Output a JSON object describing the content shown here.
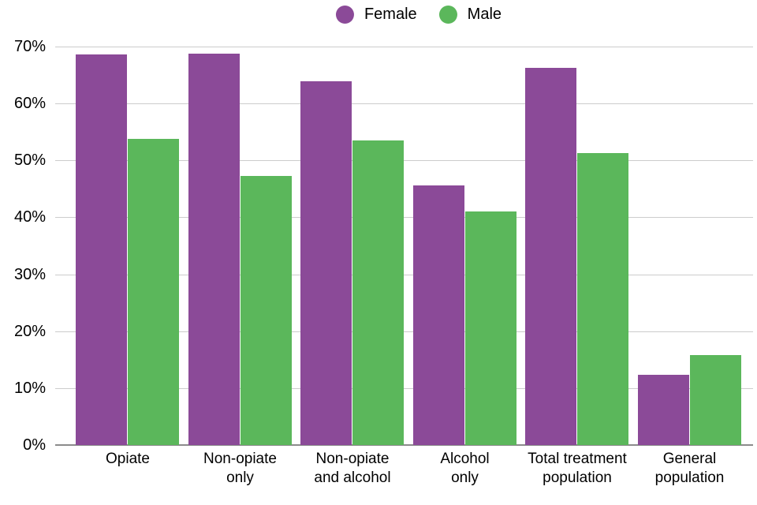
{
  "legend": {
    "items": [
      {
        "label": "Female",
        "color": "#8b4a98"
      },
      {
        "label": "Male",
        "color": "#5bb75b"
      }
    ]
  },
  "chart_data": {
    "type": "bar",
    "title": "",
    "xlabel": "",
    "ylabel": "",
    "categories": [
      "Opiate",
      "Non-opiate only",
      "Non-opiate and alcohol",
      "Alcohol only",
      "Total treatment population",
      "General population"
    ],
    "category_label_lines": [
      [
        "Opiate"
      ],
      [
        "Non-opiate",
        "only"
      ],
      [
        "Non-opiate",
        "and alcohol"
      ],
      [
        "Alcohol",
        "only"
      ],
      [
        "Total treatment",
        "population"
      ],
      [
        "General",
        "population"
      ]
    ],
    "series": [
      {
        "name": "Female",
        "color": "#8b4a98",
        "values": [
          68.6,
          68.8,
          63.9,
          45.6,
          66.2,
          12.3
        ]
      },
      {
        "name": "Male",
        "color": "#5bb75b",
        "values": [
          53.8,
          47.3,
          53.5,
          41.0,
          51.3,
          15.8
        ]
      }
    ],
    "ylim": [
      0,
      70
    ],
    "yticks": [
      0,
      10,
      20,
      30,
      40,
      50,
      60,
      70
    ],
    "ytick_labels": [
      "0%",
      "10%",
      "20%",
      "30%",
      "40%",
      "50%",
      "60%",
      "70%"
    ],
    "grid": true,
    "gridline_color": "#cccccc",
    "axis_line_color": "#8c8c8c",
    "text_color": "#000000",
    "legend_position": "top-center"
  }
}
